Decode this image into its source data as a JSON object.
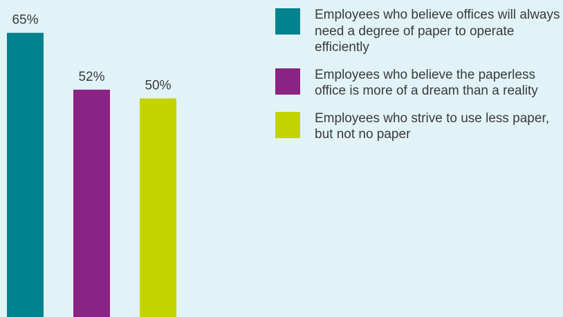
{
  "chart_data": {
    "type": "bar",
    "title": "",
    "xlabel": "",
    "ylabel": "",
    "ylim": [
      0,
      100
    ],
    "grid": false,
    "legend_position": "right",
    "unit": "%",
    "categories": [
      "Employees who believe offices will always need a degree of paper to operate efficiently",
      "Employees who believe the paperless office is more of a dream than a reality",
      "Employees who strive to use less paper, but not no paper"
    ],
    "values": [
      65,
      52,
      50
    ],
    "value_labels": [
      "65%",
      "52%",
      "50%"
    ],
    "colors": [
      "#00838f",
      "#8b2384",
      "#c2d300"
    ]
  }
}
